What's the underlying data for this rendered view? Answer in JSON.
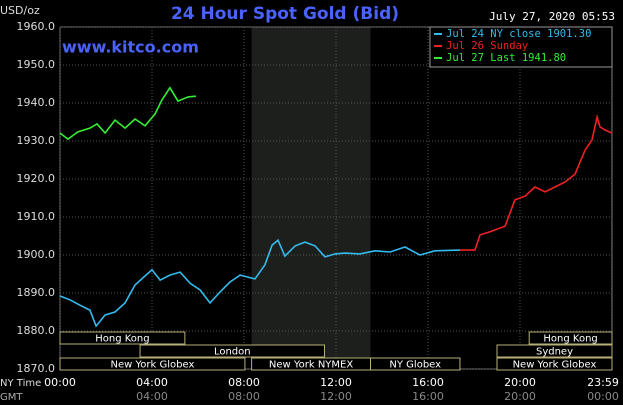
{
  "chart_data": {
    "type": "line",
    "title": "24 Hour Spot Gold (Bid)",
    "y_label": "USD/oz",
    "timestamp": "July 27, 2020 05:53",
    "watermark": "www.kitco.com",
    "xlim": [
      0,
      24
    ],
    "ylim": [
      1870,
      1960
    ],
    "yticks": [
      {
        "value": 1870,
        "label": "1870.0"
      },
      {
        "value": 1880,
        "label": "1880.0"
      },
      {
        "value": 1890,
        "label": "1890.0"
      },
      {
        "value": 1900,
        "label": "1900.0"
      },
      {
        "value": 1910,
        "label": "1910.0"
      },
      {
        "value": 1920,
        "label": "1920.0"
      },
      {
        "value": 1930,
        "label": "1930.0"
      },
      {
        "value": 1940,
        "label": "1940.0"
      },
      {
        "value": 1950,
        "label": "1950.0"
      },
      {
        "value": 1960,
        "label": "1960.0"
      }
    ],
    "xticks": [
      {
        "value": 0,
        "label": "00:00"
      },
      {
        "value": 4,
        "label": "04:00"
      },
      {
        "value": 8,
        "label": "08:00"
      },
      {
        "value": 12,
        "label": "12:00"
      },
      {
        "value": 16,
        "label": "16:00"
      },
      {
        "value": 20,
        "label": "20:00"
      },
      {
        "value": 23.98,
        "label": "23:59"
      }
    ],
    "x_row_label": "NY Time",
    "x2_row_label": "GMT",
    "x2_labels": [
      "04:00",
      "08:00",
      "12:00",
      "16:00",
      "20:00",
      "00:00",
      "03:59"
    ],
    "grid": true,
    "shaded_range": [
      8.33,
      13.5
    ],
    "sessions": [
      [
        {
          "label": "Hong Kong",
          "start": 0,
          "end": 5.43
        },
        {
          "label": "Hong Kong",
          "start": 20.4,
          "end": 24
        }
      ],
      [
        {
          "label": "London",
          "start": 3.48,
          "end": 11.5
        },
        {
          "label": "Sydney",
          "start": 19,
          "end": 24
        }
      ],
      [
        {
          "label": "New York Globex",
          "start": 0,
          "end": 8.04
        },
        {
          "label": "New York NYMEX",
          "start": 8.33,
          "end": 13.5
        },
        {
          "label": "NY Globex",
          "start": 13.5,
          "end": 17.39
        },
        {
          "label": "New York Globex",
          "start": 19,
          "end": 24
        }
      ]
    ],
    "series": [
      {
        "name": "Jul 24 NY close 1901.30",
        "color": "#33bbee",
        "x": [
          0,
          0.43,
          0.87,
          1.3,
          1.57,
          1.96,
          2.39,
          2.83,
          3.26,
          3.7,
          4.0,
          4.35,
          4.78,
          5.22,
          5.65,
          6.09,
          6.52,
          6.96,
          7.39,
          7.83,
          8.48,
          8.91,
          9.22,
          9.48,
          9.78,
          10.22,
          10.65,
          11.09,
          11.52,
          11.96,
          12.39,
          13.04,
          13.7,
          14.35,
          15.0,
          15.65,
          16.3,
          17.39
        ],
        "values": [
          1889.2,
          1888.2,
          1886.8,
          1885.5,
          1881.3,
          1884.2,
          1885.0,
          1887.4,
          1892.1,
          1894.5,
          1896.1,
          1893.4,
          1894.7,
          1895.5,
          1892.6,
          1890.8,
          1887.4,
          1890.3,
          1892.9,
          1894.7,
          1893.7,
          1897.4,
          1902.6,
          1903.9,
          1899.7,
          1902.4,
          1903.4,
          1902.4,
          1899.5,
          1900.3,
          1900.5,
          1900.3,
          1901.1,
          1900.8,
          1902.1,
          1900.0,
          1901.1,
          1901.3
        ]
      },
      {
        "name": "Jul 26 Sunday",
        "color": "#ee2222",
        "x": [
          17.39,
          18.04,
          18.26,
          18.7,
          19.35,
          19.78,
          20.22,
          20.65,
          21.09,
          21.52,
          21.96,
          22.39,
          22.83,
          23.13,
          23.35,
          23.48,
          23.7,
          24
        ],
        "values": [
          1901.3,
          1901.3,
          1905.3,
          1906.1,
          1907.6,
          1914.5,
          1915.5,
          1917.9,
          1916.6,
          1917.9,
          1919.2,
          1921.3,
          1927.6,
          1930.3,
          1936.3,
          1933.7,
          1932.9,
          1932.1
        ]
      },
      {
        "name": "Jul 27 Last 1941.80",
        "color": "#33ee33",
        "x": [
          0,
          0.35,
          0.78,
          1.3,
          1.61,
          1.96,
          2.39,
          2.83,
          3.26,
          3.7,
          4.13,
          4.43,
          4.78,
          5.13,
          5.57,
          5.91
        ],
        "values": [
          1932.1,
          1930.5,
          1932.4,
          1933.4,
          1934.5,
          1932.1,
          1935.5,
          1933.4,
          1935.8,
          1934.0,
          1937.1,
          1940.8,
          1944.0,
          1940.5,
          1941.6,
          1941.8
        ]
      }
    ]
  }
}
